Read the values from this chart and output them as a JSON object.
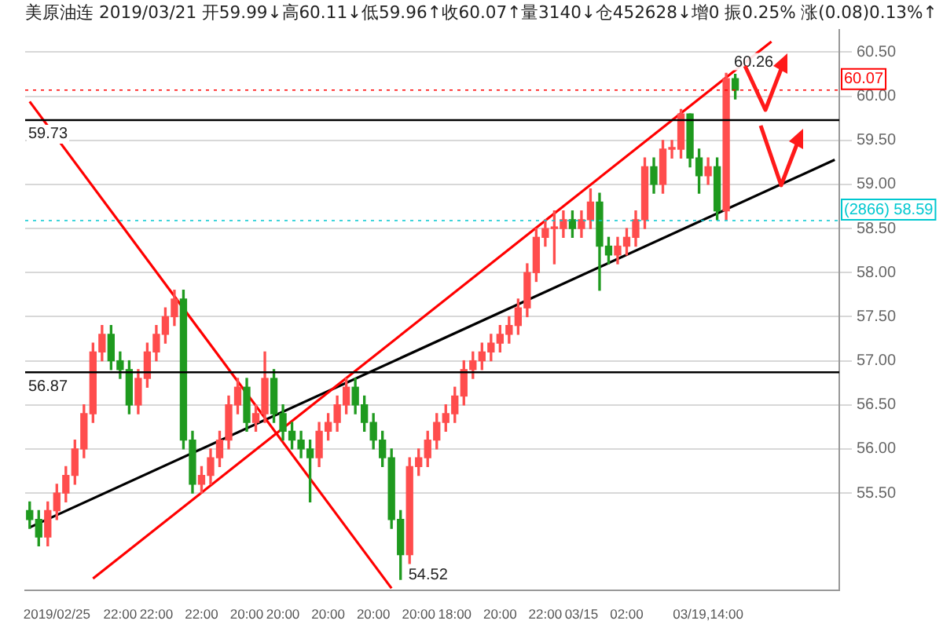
{
  "chart_data": {
    "type": "candlestick",
    "title": "美原油连 2019/03/21 开59.99↓高60.11↓低59.96↑收60.07↑量3140↓仓452628↓增0 振0.25% 涨(0.08)0.13%↑",
    "categories": [
      null,
      null,
      null,
      "2019/02/25",
      null,
      null,
      null,
      null,
      null,
      null,
      "22:00",
      null,
      null,
      null,
      "22:00",
      null,
      null,
      null,
      null,
      "22:00",
      null,
      null,
      null,
      null,
      "20:00",
      null,
      null,
      null,
      "20:00",
      null,
      null,
      null,
      null,
      "20:00",
      null,
      null,
      null,
      null,
      "20:00",
      null,
      null,
      null,
      null,
      "20:00",
      null,
      null,
      null,
      "18:00",
      null,
      null,
      null,
      null,
      "20:00",
      null,
      null,
      null,
      null,
      "22:00",
      null,
      null,
      null,
      "03/15",
      null,
      null,
      null,
      null,
      "02:00",
      null,
      null,
      null,
      null,
      null,
      null,
      null,
      null,
      "03/19,14:00",
      null,
      null,
      null,
      null,
      null,
      null,
      null,
      null,
      null,
      null,
      null,
      null,
      null,
      null
    ],
    "ohlc": [
      [
        55.3,
        55.4,
        55.1,
        55.2
      ],
      [
        55.2,
        55.3,
        54.9,
        55.0
      ],
      [
        55.0,
        55.4,
        54.9,
        55.3
      ],
      [
        55.3,
        55.6,
        55.2,
        55.5
      ],
      [
        55.5,
        55.8,
        55.4,
        55.7
      ],
      [
        55.7,
        56.1,
        55.6,
        56.0
      ],
      [
        56.0,
        56.5,
        55.9,
        56.4
      ],
      [
        56.4,
        57.2,
        56.3,
        57.1
      ],
      [
        57.1,
        57.4,
        57.0,
        57.3
      ],
      [
        57.3,
        57.4,
        56.9,
        57.0
      ],
      [
        57.0,
        57.1,
        56.8,
        56.9
      ],
      [
        56.9,
        57.0,
        56.4,
        56.5
      ],
      [
        56.5,
        56.9,
        56.4,
        56.8
      ],
      [
        56.8,
        57.2,
        56.7,
        57.1
      ],
      [
        57.1,
        57.4,
        57.0,
        57.3
      ],
      [
        57.3,
        57.6,
        57.2,
        57.5
      ],
      [
        57.5,
        57.8,
        57.4,
        57.7
      ],
      [
        57.7,
        57.8,
        56.0,
        56.1
      ],
      [
        56.1,
        56.2,
        55.5,
        55.6
      ],
      [
        55.6,
        55.8,
        55.5,
        55.7
      ],
      [
        55.7,
        56.0,
        55.6,
        55.9
      ],
      [
        55.9,
        56.2,
        55.8,
        56.1
      ],
      [
        56.1,
        56.6,
        56.0,
        56.5
      ],
      [
        56.5,
        56.8,
        56.4,
        56.7
      ],
      [
        56.7,
        56.8,
        56.2,
        56.3
      ],
      [
        56.3,
        56.5,
        56.2,
        56.4
      ],
      [
        56.4,
        57.1,
        56.3,
        56.8
      ],
      [
        56.8,
        56.9,
        56.3,
        56.4
      ],
      [
        56.4,
        56.5,
        56.1,
        56.2
      ],
      [
        56.2,
        56.3,
        56.0,
        56.1
      ],
      [
        56.1,
        56.2,
        55.9,
        56.0
      ],
      [
        56.0,
        56.1,
        55.4,
        55.9
      ],
      [
        55.9,
        56.3,
        55.8,
        56.2
      ],
      [
        56.2,
        56.4,
        56.1,
        56.3
      ],
      [
        56.3,
        56.6,
        56.2,
        56.5
      ],
      [
        56.5,
        56.8,
        56.4,
        56.7
      ],
      [
        56.7,
        56.8,
        56.4,
        56.5
      ],
      [
        56.5,
        56.6,
        56.2,
        56.3
      ],
      [
        56.3,
        56.4,
        56.0,
        56.1
      ],
      [
        56.1,
        56.2,
        55.8,
        55.9
      ],
      [
        55.9,
        56.0,
        55.1,
        55.2
      ],
      [
        55.2,
        55.3,
        54.52,
        54.8
      ],
      [
        54.8,
        55.9,
        54.7,
        55.8
      ],
      [
        55.8,
        56.0,
        55.7,
        55.9
      ],
      [
        55.9,
        56.2,
        55.8,
        56.1
      ],
      [
        56.1,
        56.4,
        56.0,
        56.3
      ],
      [
        56.3,
        56.5,
        56.2,
        56.4
      ],
      [
        56.4,
        56.7,
        56.3,
        56.6
      ],
      [
        56.6,
        57.0,
        56.5,
        56.9
      ],
      [
        56.9,
        57.1,
        56.8,
        57.0
      ],
      [
        57.0,
        57.2,
        56.9,
        57.1
      ],
      [
        57.1,
        57.3,
        57.0,
        57.2
      ],
      [
        57.2,
        57.4,
        57.1,
        57.3
      ],
      [
        57.3,
        57.5,
        57.2,
        57.4
      ],
      [
        57.4,
        57.7,
        57.3,
        57.6
      ],
      [
        57.6,
        58.1,
        57.5,
        58.0
      ],
      [
        58.0,
        58.5,
        57.9,
        58.4
      ],
      [
        58.4,
        58.6,
        58.3,
        58.5
      ],
      [
        58.5,
        58.7,
        58.1,
        58.5
      ],
      [
        58.5,
        58.7,
        58.4,
        58.6
      ],
      [
        58.6,
        58.7,
        58.4,
        58.5
      ],
      [
        58.5,
        58.7,
        58.4,
        58.6
      ],
      [
        58.6,
        58.95,
        58.5,
        58.8
      ],
      [
        58.8,
        58.9,
        57.8,
        58.3
      ],
      [
        58.3,
        58.4,
        58.1,
        58.2
      ],
      [
        58.2,
        58.4,
        58.1,
        58.3
      ],
      [
        58.3,
        58.5,
        58.2,
        58.4
      ],
      [
        58.4,
        58.7,
        58.3,
        58.6
      ],
      [
        58.6,
        59.3,
        58.5,
        59.2
      ],
      [
        59.2,
        59.3,
        58.9,
        59.0
      ],
      [
        59.0,
        59.5,
        58.9,
        59.4
      ],
      [
        59.4,
        59.5,
        59.3,
        59.4
      ],
      [
        59.4,
        59.85,
        59.3,
        59.8
      ],
      [
        59.8,
        59.8,
        59.2,
        59.3
      ],
      [
        59.3,
        59.4,
        58.9,
        59.1
      ],
      [
        59.1,
        59.3,
        59.0,
        59.2
      ],
      [
        59.2,
        59.3,
        58.6,
        58.7
      ],
      [
        58.7,
        60.26,
        58.6,
        60.2
      ],
      [
        60.2,
        60.25,
        59.97,
        60.07
      ],
      null,
      null,
      null,
      null,
      null,
      null,
      null,
      null,
      null,
      null,
      null
    ],
    "series": [
      {
        "type": "line",
        "color": "#ff0000",
        "values": [
          59.94,
          null,
          null,
          null,
          null,
          null,
          null,
          null,
          null,
          null,
          null,
          null,
          null,
          null,
          null,
          null,
          null,
          null,
          null,
          null,
          null,
          null,
          null,
          null,
          null,
          null,
          null,
          null,
          null,
          null,
          null,
          null,
          null,
          null,
          null,
          null,
          null,
          null,
          null,
          null,
          54.42,
          null,
          null,
          null,
          null,
          null,
          null,
          null,
          null,
          null,
          null,
          null,
          null,
          null,
          null,
          null,
          null,
          null,
          null,
          null,
          null,
          null,
          null,
          null,
          null,
          null,
          null,
          null,
          null,
          null,
          null,
          null,
          null,
          null,
          null,
          null,
          null,
          null,
          null,
          null,
          null,
          null,
          null,
          null,
          null,
          null,
          null,
          null,
          null,
          null
        ]
      },
      {
        "type": "line",
        "color": "#ff0000",
        "values": [
          null,
          null,
          null,
          null,
          null,
          null,
          null,
          54.53,
          null,
          null,
          null,
          null,
          null,
          null,
          null,
          null,
          null,
          null,
          null,
          null,
          null,
          null,
          null,
          null,
          null,
          null,
          null,
          null,
          null,
          null,
          null,
          null,
          null,
          null,
          null,
          null,
          null,
          null,
          null,
          null,
          null,
          null,
          null,
          null,
          null,
          null,
          null,
          null,
          null,
          null,
          null,
          null,
          null,
          null,
          null,
          null,
          null,
          null,
          null,
          null,
          null,
          null,
          null,
          null,
          null,
          null,
          null,
          null,
          null,
          null,
          null,
          null,
          null,
          null,
          null,
          null,
          null,
          null,
          null,
          null,
          null,
          null,
          60.62,
          null,
          null,
          null,
          null,
          null,
          null,
          null
        ]
      },
      {
        "type": "line",
        "color": "#000000",
        "values": [
          55.11,
          null,
          null,
          null,
          null,
          null,
          null,
          null,
          null,
          null,
          null,
          null,
          null,
          null,
          null,
          null,
          null,
          null,
          null,
          null,
          null,
          null,
          null,
          null,
          null,
          null,
          null,
          null,
          null,
          null,
          null,
          null,
          null,
          null,
          null,
          null,
          null,
          null,
          null,
          null,
          null,
          null,
          null,
          null,
          null,
          null,
          null,
          null,
          null,
          null,
          null,
          null,
          null,
          null,
          null,
          null,
          null,
          null,
          null,
          null,
          null,
          null,
          null,
          null,
          null,
          null,
          null,
          null,
          null,
          null,
          null,
          null,
          null,
          null,
          null,
          null,
          null,
          null,
          null,
          null,
          null,
          null,
          null,
          null,
          null,
          null,
          null,
          null,
          null,
          59.28
        ]
      }
    ],
    "ylim": [
      54.4,
      60.75
    ],
    "yticks": [
      {
        "value": 55.5,
        "label": "55.50"
      },
      {
        "value": 56,
        "label": "56.00"
      },
      {
        "value": 56.5,
        "label": "56.50"
      },
      {
        "value": 57,
        "label": "57.00"
      },
      {
        "value": 57.5,
        "label": "57.50"
      },
      {
        "value": 58,
        "label": "58.00"
      },
      {
        "value": 58.5,
        "label": "58.50"
      },
      {
        "value": 59,
        "label": "59.00"
      },
      {
        "value": 59.5,
        "label": "59.50"
      },
      {
        "value": 60,
        "label": "60.00"
      },
      {
        "value": 60.5,
        "label": "60.50"
      }
    ],
    "ref_lines": [
      {
        "axis": "y",
        "value": 59.73,
        "label": "59.73",
        "color": "#000000",
        "line_style": "solid"
      },
      {
        "axis": "y",
        "value": 56.87,
        "label": "56.87",
        "color": "#000000",
        "line_style": "solid"
      },
      {
        "axis": "y",
        "value": 60.07,
        "label": "60.07",
        "color": "#ff0000",
        "line_style": "dotted"
      },
      {
        "axis": "y",
        "value": 58.59,
        "label": "(2866) 58.59",
        "color": "#00c8d0",
        "line_style": "dotted"
      }
    ],
    "annotations": [
      "54.52",
      "60.26"
    ],
    "grid": "y"
  }
}
